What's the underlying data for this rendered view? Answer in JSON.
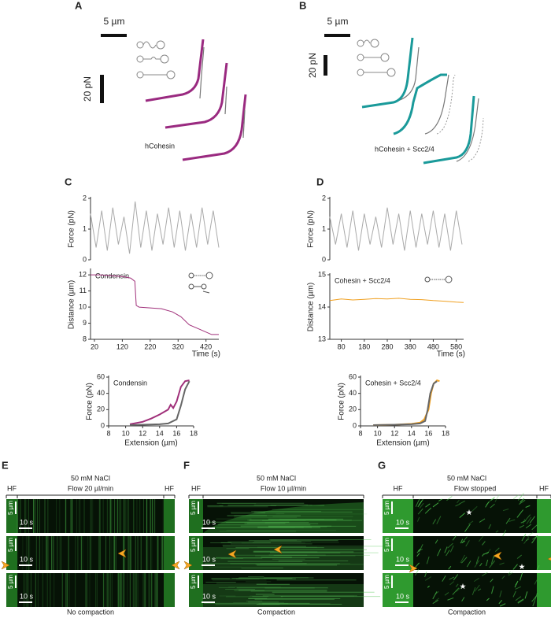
{
  "panels": {
    "A": {
      "label": "A",
      "scale_x": "5 µm",
      "scale_y": "20 pN",
      "caption": "hCohesin"
    },
    "B": {
      "label": "B",
      "scale_x": "5 µm",
      "scale_y": "20 pN",
      "caption": "hCohesin + Scc2/4"
    },
    "C": {
      "label": "C"
    },
    "D": {
      "label": "D"
    }
  },
  "chart_data": [
    {
      "type": "line",
      "ylabel": "Force (pN)",
      "xlim": [
        6,
        466
      ],
      "ylim": [
        0,
        2
      ],
      "yticks": [
        0,
        1,
        2
      ],
      "series": [
        {
          "color": "#aaaaaa",
          "x": [
            6,
            26,
            46,
            66,
            86,
            106,
            126,
            146,
            166,
            186,
            206,
            226,
            246,
            266,
            286,
            306,
            326,
            346,
            366,
            386,
            406,
            426,
            446,
            466
          ],
          "values": [
            1.5,
            0.4,
            1.6,
            0.3,
            1.7,
            0.5,
            1.4,
            0.2,
            1.9,
            0.4,
            1.6,
            0.3,
            1.5,
            0.5,
            1.7,
            0.4,
            1.6,
            0.3,
            1.5,
            0.4,
            1.7,
            0.5,
            1.6,
            0.4
          ]
        }
      ]
    },
    {
      "type": "line",
      "ylabel": "Distance (µm)",
      "xlabel": "Time (s)",
      "annotation": "Condensin",
      "xlim": [
        6,
        466
      ],
      "ylim": [
        8,
        12.3
      ],
      "xticks": [
        20,
        120,
        220,
        320,
        420
      ],
      "yticks": [
        8,
        9,
        10,
        11,
        12
      ],
      "series": [
        {
          "color": "#a0307a",
          "x": [
            6,
            40,
            80,
            120,
            150,
            165,
            170,
            180,
            220,
            260,
            300,
            330,
            360,
            400,
            440,
            466
          ],
          "values": [
            12,
            12,
            11.95,
            11.9,
            11.8,
            11.6,
            10.1,
            10,
            9.95,
            9.9,
            9.7,
            9.4,
            8.9,
            8.6,
            8.3,
            8.3
          ]
        }
      ]
    },
    {
      "type": "line",
      "ylabel": "Force (pN)",
      "xlabel": "Extension (µm)",
      "annotation": "Condensin",
      "xlim": [
        8,
        18
      ],
      "ylim": [
        0,
        60
      ],
      "xticks": [
        8,
        10,
        12,
        14,
        16,
        18
      ],
      "yticks": [
        0,
        20,
        40,
        60
      ],
      "series": [
        {
          "color": "#a0307a",
          "x": [
            10.5,
            12,
            13,
            14,
            15,
            15.3,
            15.6,
            16,
            16.5,
            17,
            17.5
          ],
          "values": [
            2,
            5,
            9,
            14,
            20,
            26,
            22,
            30,
            48,
            55,
            56
          ]
        },
        {
          "color": "#666666",
          "x": [
            10.5,
            12,
            14,
            15,
            16,
            16.5,
            17,
            17.5
          ],
          "values": [
            1,
            1.5,
            2,
            3,
            8,
            25,
            45,
            55
          ]
        }
      ]
    },
    {
      "type": "line",
      "ylabel": "Force (pN)",
      "xlim": [
        30,
        612
      ],
      "ylim": [
        0,
        2
      ],
      "yticks": [
        0,
        1,
        2
      ],
      "series": [
        {
          "color": "#aaaaaa",
          "x": [
            30,
            55,
            80,
            105,
            130,
            155,
            180,
            205,
            230,
            255,
            280,
            305,
            330,
            355,
            380,
            405,
            430,
            455,
            480,
            505,
            530,
            555,
            580,
            605
          ],
          "values": [
            1.4,
            0.5,
            1.5,
            0.4,
            1.6,
            0.3,
            1.5,
            0.5,
            1.4,
            0.4,
            1.7,
            0.5,
            1.5,
            0.3,
            1.6,
            0.4,
            1.5,
            0.5,
            1.6,
            0.4,
            1.5,
            0.3,
            1.6,
            0.5
          ]
        }
      ]
    },
    {
      "type": "line",
      "ylabel": "Distance (µm)",
      "xlabel": "Time (s)",
      "annotation": "Cohesin + Scc2/4",
      "xlim": [
        30,
        612
      ],
      "ylim": [
        13,
        15
      ],
      "xticks": [
        80,
        180,
        280,
        380,
        480,
        580
      ],
      "yticks": [
        13,
        14,
        15
      ],
      "series": [
        {
          "color": "#f0a020",
          "x": [
            30,
            80,
            130,
            180,
            230,
            280,
            330,
            380,
            430,
            480,
            530,
            580,
            612
          ],
          "values": [
            14.2,
            14.25,
            14.22,
            14.24,
            14.26,
            14.25,
            14.27,
            14.24,
            14.23,
            14.2,
            14.18,
            14.15,
            14.14
          ]
        }
      ]
    },
    {
      "type": "line",
      "ylabel": "Force (pN)",
      "xlabel": "Extension (µm)",
      "annotation": "Cohesin + Scc2/4",
      "xlim": [
        8,
        18
      ],
      "ylim": [
        0,
        60
      ],
      "xticks": [
        8,
        10,
        12,
        14,
        16,
        18
      ],
      "yticks": [
        0,
        20,
        40,
        60
      ],
      "series": [
        {
          "color": "#f0a020",
          "x": [
            9.5,
            12,
            14,
            15,
            15.5,
            16,
            16.3,
            16.6,
            17,
            17.3
          ],
          "values": [
            1,
            1.5,
            2.5,
            4,
            8,
            20,
            40,
            52,
            56,
            55
          ]
        },
        {
          "color": "#666666",
          "x": [
            9.5,
            12,
            14,
            15,
            15.6,
            15.9,
            16.2,
            16.6,
            17
          ],
          "values": [
            1,
            1.5,
            2,
            3,
            6,
            20,
            40,
            52,
            55
          ]
        }
      ]
    }
  ],
  "kymographs": [
    {
      "label": "E",
      "condition": "50 mM NaCl",
      "segments": [
        "HF",
        "Flow 20 µl/min",
        "HF"
      ],
      "scale_y": "5 µm",
      "scale_x": "10 s",
      "result": "No compaction"
    },
    {
      "label": "F",
      "condition": "50 mM NaCl",
      "segments": [
        "HF",
        "Flow 10 µl/min"
      ],
      "scale_y": "5 µm",
      "scale_x": "10 s",
      "result": "Compaction"
    },
    {
      "label": "G",
      "condition": "50 mM NaCl",
      "segments": [
        "HF",
        "Flow stopped",
        "HF"
      ],
      "scale_y": "5 µm",
      "scale_x": "10 s",
      "result": "Compaction"
    }
  ]
}
